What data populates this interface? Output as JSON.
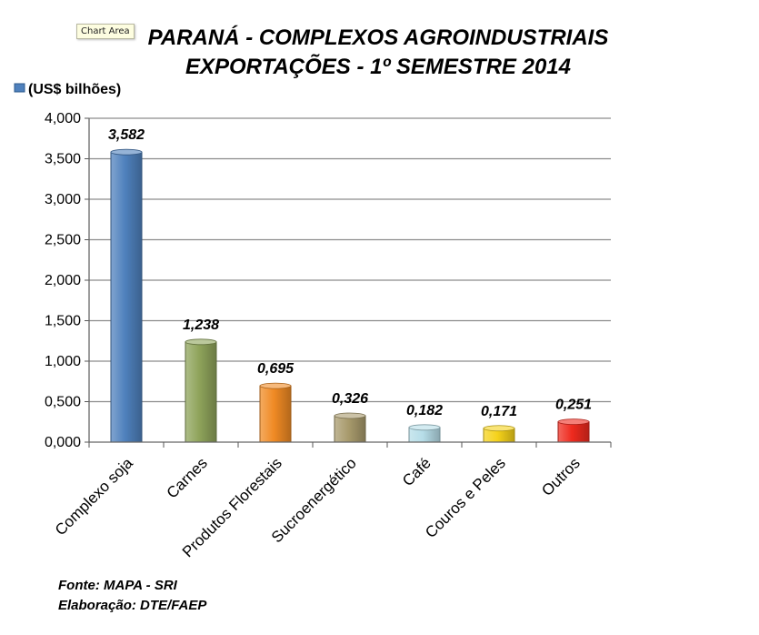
{
  "tooltip": "Chart Area",
  "chart_data": {
    "type": "bar",
    "title": [
      "PARANÁ - COMPLEXOS AGROINDUSTRIAIS",
      "EXPORTAÇÕES - 1º SEMESTRE 2014"
    ],
    "legend": "(US$ bilhões)",
    "legend_placement": "top-left",
    "grid": true,
    "ylim": [
      0,
      4
    ],
    "yticks": [
      0,
      0.5,
      1,
      1.5,
      2,
      2.5,
      3,
      3.5,
      4
    ],
    "ytick_labels": [
      "0,000",
      "0,500",
      "1,000",
      "1,500",
      "2,000",
      "2,500",
      "3,000",
      "3,500",
      "4,000"
    ],
    "categories": [
      "Complexo soja",
      "Carnes",
      "Produtos Florestais",
      "Sucroenergético",
      "Café",
      "Couros e Peles",
      "Outros"
    ],
    "values": [
      3.582,
      1.238,
      0.695,
      0.326,
      0.182,
      0.171,
      0.251
    ],
    "value_labels": [
      "3,582",
      "1,238",
      "0,695",
      "0,326",
      "0,182",
      "0,171",
      "0,251"
    ],
    "colors": [
      "#4f81bd",
      "#8ea35a",
      "#f08a24",
      "#a89a6c",
      "#b6dde8",
      "#f5d21a",
      "#ee2a1e"
    ]
  },
  "footer": {
    "source": "Fonte: MAPA - SRI",
    "credit": "Elaboração: DTE/FAEP"
  }
}
